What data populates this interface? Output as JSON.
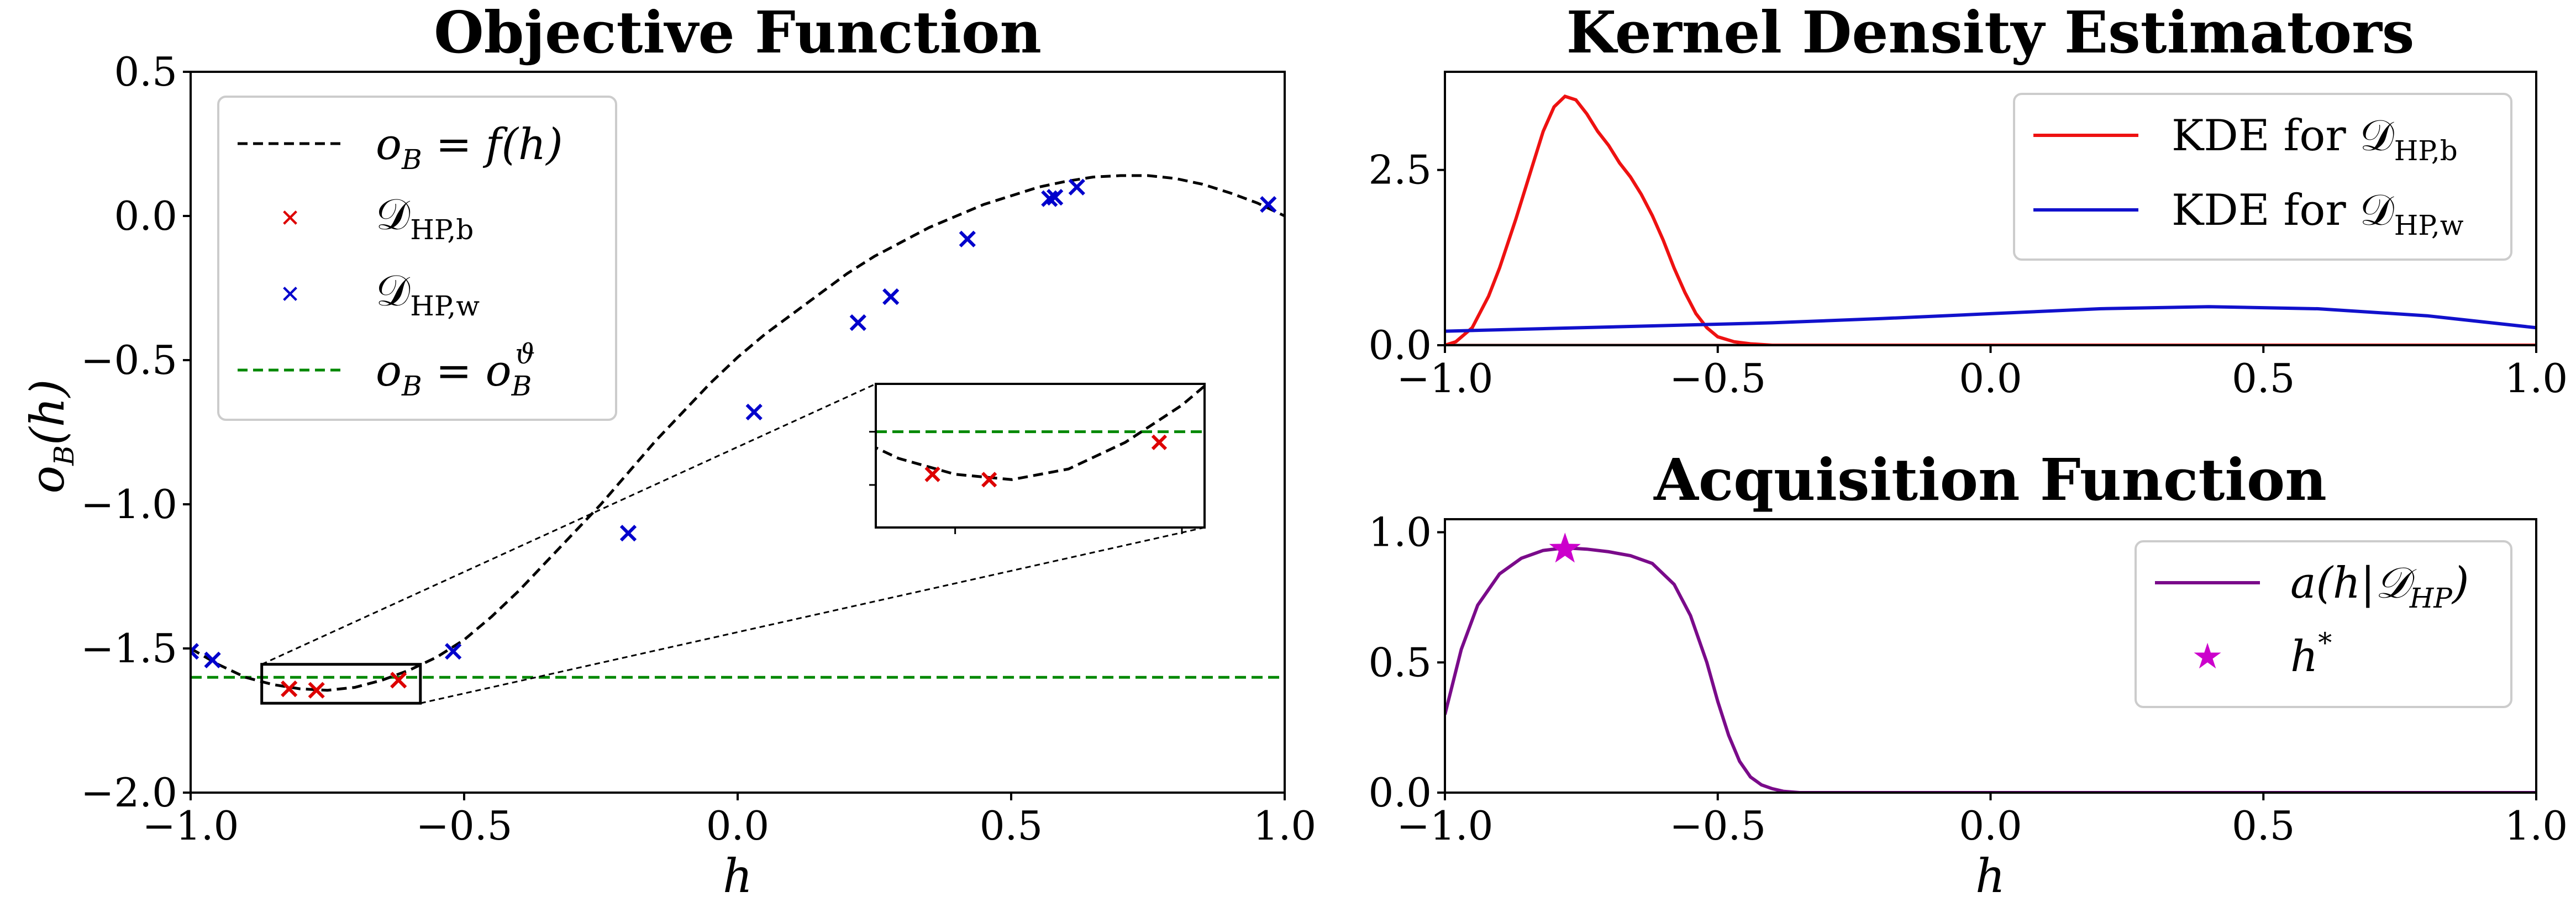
{
  "chart_data": [
    {
      "id": "objective",
      "type": "line",
      "title": "Objective Function",
      "xlabel": "h",
      "ylabel": "o_B(h)",
      "xlim": [
        -1.0,
        1.0
      ],
      "ylim": [
        -2.0,
        0.5
      ],
      "xticks": [
        "−1.0",
        "−0.5",
        "0.0",
        "0.5",
        "1.0"
      ],
      "yticks": [
        "−2.0",
        "−1.5",
        "−1.0",
        "−0.5",
        "0.0",
        "0.5"
      ],
      "curve": {
        "name": "o_B = f(h)",
        "color": "#000000",
        "style": "dashed",
        "x": [
          -1.0,
          -0.95,
          -0.9,
          -0.85,
          -0.8,
          -0.75,
          -0.7,
          -0.65,
          -0.6,
          -0.55,
          -0.5,
          -0.45,
          -0.4,
          -0.35,
          -0.3,
          -0.25,
          -0.2,
          -0.15,
          -0.1,
          -0.05,
          0.0,
          0.05,
          0.1,
          0.15,
          0.2,
          0.25,
          0.3,
          0.35,
          0.4,
          0.45,
          0.5,
          0.55,
          0.6,
          0.65,
          0.7,
          0.75,
          0.8,
          0.85,
          0.9,
          0.95,
          1.0
        ],
        "y": [
          -1.5,
          -1.555,
          -1.6,
          -1.625,
          -1.64,
          -1.645,
          -1.635,
          -1.61,
          -1.575,
          -1.53,
          -1.47,
          -1.39,
          -1.3,
          -1.2,
          -1.1,
          -1.0,
          -0.89,
          -0.78,
          -0.68,
          -0.58,
          -0.49,
          -0.41,
          -0.34,
          -0.27,
          -0.2,
          -0.14,
          -0.09,
          -0.04,
          0.0,
          0.04,
          0.07,
          0.1,
          0.12,
          0.135,
          0.14,
          0.14,
          0.13,
          0.11,
          0.08,
          0.045,
          0.0
        ]
      },
      "points_best": {
        "name": "D_HP,b",
        "color": "#dd0000",
        "x": [
          -0.82,
          -0.77,
          -0.62
        ],
        "y": [
          -1.64,
          -1.645,
          -1.61
        ]
      },
      "points_worst": {
        "name": "D_HP,w",
        "color": "#0000cc",
        "x": [
          -1.0,
          -0.96,
          -0.52,
          -0.2,
          0.03,
          0.22,
          0.28,
          0.42,
          0.57,
          0.58,
          0.62,
          0.97
        ],
        "y": [
          -1.51,
          -1.54,
          -1.51,
          -1.1,
          -0.68,
          -0.37,
          -0.28,
          -0.08,
          0.06,
          0.065,
          0.1,
          0.04
        ]
      },
      "threshold": {
        "name": "o_B = o_B^ϑ",
        "color": "#008800",
        "style": "dashed",
        "y": -1.6
      },
      "inset": {
        "xlim": [
          -0.87,
          -0.58
        ],
        "ylim": [
          -1.69,
          -1.555
        ]
      },
      "legend": {
        "entries": [
          {
            "main": "o",
            "sub": "B",
            "rest": " = f(h)"
          },
          {
            "main": "𝒟",
            "sub": "HP,b",
            "rest": ""
          },
          {
            "main": "𝒟",
            "sub": "HP,w",
            "rest": ""
          },
          {
            "main": "o",
            "sub": "B",
            "rest": " = o",
            "sub2": "B",
            "sup": "ϑ"
          }
        ],
        "placement": "upper-left"
      }
    },
    {
      "id": "kde",
      "type": "line",
      "title": "Kernel Density Estimators",
      "xlim": [
        -1.0,
        1.0
      ],
      "ylim": [
        0.0,
        3.9
      ],
      "xticks": [
        "−1.0",
        "−0.5",
        "0.0",
        "0.5",
        "1.0"
      ],
      "yticks": [
        "0.0",
        "2.5"
      ],
      "series": [
        {
          "name": "KDE for D_HP,b",
          "color": "#ee1111",
          "x": [
            -1.0,
            -0.98,
            -0.95,
            -0.92,
            -0.9,
            -0.87,
            -0.84,
            -0.82,
            -0.8,
            -0.78,
            -0.76,
            -0.74,
            -0.72,
            -0.7,
            -0.68,
            -0.66,
            -0.64,
            -0.62,
            -0.6,
            -0.58,
            -0.56,
            -0.54,
            -0.52,
            -0.5,
            -0.47,
            -0.44,
            -0.4,
            -0.3,
            0.0,
            0.5,
            1.0
          ],
          "y": [
            0.0,
            0.05,
            0.25,
            0.7,
            1.1,
            1.8,
            2.55,
            3.05,
            3.4,
            3.55,
            3.5,
            3.3,
            3.05,
            2.85,
            2.6,
            2.4,
            2.15,
            1.85,
            1.5,
            1.1,
            0.75,
            0.45,
            0.25,
            0.12,
            0.05,
            0.02,
            0.0,
            0.0,
            0.0,
            0.0,
            0.0
          ]
        },
        {
          "name": "KDE for D_HP,w",
          "color": "#1111cc",
          "x": [
            -1.0,
            -0.8,
            -0.6,
            -0.4,
            -0.2,
            0.0,
            0.2,
            0.4,
            0.6,
            0.8,
            1.0
          ],
          "y": [
            0.2,
            0.24,
            0.28,
            0.32,
            0.38,
            0.45,
            0.52,
            0.55,
            0.52,
            0.42,
            0.25
          ]
        }
      ],
      "legend": {
        "entries": [
          {
            "main": "KDE for 𝒟",
            "sub": "HP,b"
          },
          {
            "main": "KDE for 𝒟",
            "sub": "HP,w"
          }
        ],
        "placement": "upper-right"
      }
    },
    {
      "id": "acquisition",
      "type": "line",
      "title": "Acquisition Function",
      "xlabel": "h",
      "xlim": [
        -1.0,
        1.0
      ],
      "ylim": [
        0.0,
        1.05
      ],
      "xticks": [
        "−1.0",
        "−0.5",
        "0.0",
        "0.5",
        "1.0"
      ],
      "yticks": [
        "0.0",
        "0.5",
        "1.0"
      ],
      "series": [
        {
          "name": "a(h|D_HP)",
          "color": "#7a0b8a",
          "x": [
            -1.0,
            -0.97,
            -0.94,
            -0.9,
            -0.86,
            -0.82,
            -0.78,
            -0.74,
            -0.7,
            -0.66,
            -0.62,
            -0.58,
            -0.55,
            -0.52,
            -0.5,
            -0.48,
            -0.46,
            -0.44,
            -0.42,
            -0.4,
            -0.38,
            -0.35,
            -0.3,
            0.0,
            0.5,
            1.0
          ],
          "y": [
            0.3,
            0.55,
            0.72,
            0.84,
            0.9,
            0.93,
            0.94,
            0.935,
            0.925,
            0.91,
            0.88,
            0.8,
            0.68,
            0.5,
            0.35,
            0.22,
            0.12,
            0.06,
            0.03,
            0.015,
            0.005,
            0.0,
            0.0,
            0.0,
            0.0,
            0.0
          ]
        }
      ],
      "best": {
        "name": "h*",
        "color": "#cc00cc",
        "x": -0.78,
        "y": 0.935
      },
      "legend": {
        "entries": [
          {
            "main": "a(h|𝒟",
            "sub": "HP",
            "rest": ")"
          },
          {
            "main": "h",
            "sup": "*"
          }
        ],
        "placement": "upper-right"
      }
    }
  ]
}
